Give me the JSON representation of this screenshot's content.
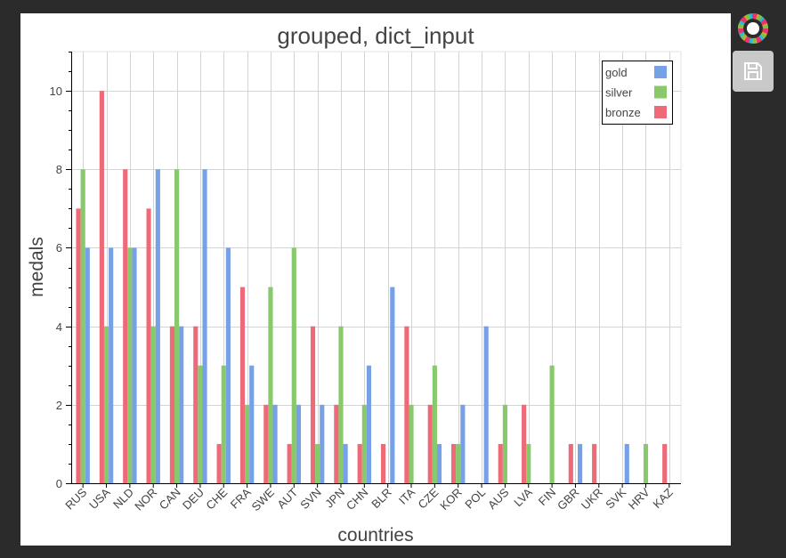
{
  "toolbar": {
    "logo_icon": "bokeh-logo-icon",
    "save_icon": "save-icon"
  },
  "chart_data": {
    "type": "bar",
    "title": "grouped, dict_input",
    "xlabel": "countries",
    "ylabel": "medals",
    "ylim": [
      0,
      11
    ],
    "yticks": [
      0,
      2,
      4,
      6,
      8,
      10
    ],
    "grid": true,
    "legend_position": "top-right",
    "categories": [
      "RUS",
      "USA",
      "NLD",
      "NOR",
      "CAN",
      "DEU",
      "CHE",
      "FRA",
      "SWE",
      "AUT",
      "SVN",
      "JPN",
      "CHN",
      "BLR",
      "ITA",
      "CZE",
      "KOR",
      "POL",
      "AUS",
      "LVA",
      "FIN",
      "GBR",
      "UKR",
      "SVK",
      "HRV",
      "KAZ"
    ],
    "series": [
      {
        "name": "bronze",
        "color": "#ef6a78",
        "values": [
          7,
          10,
          8,
          7,
          4,
          4,
          1,
          5,
          2,
          1,
          4,
          2,
          1,
          1,
          4,
          2,
          1,
          0,
          1,
          2,
          0,
          1,
          1,
          0,
          0,
          1
        ]
      },
      {
        "name": "silver",
        "color": "#87c96b",
        "values": [
          8,
          4,
          6,
          4,
          8,
          3,
          3,
          2,
          5,
          6,
          1,
          4,
          2,
          0,
          2,
          3,
          1,
          0,
          2,
          1,
          3,
          0,
          0,
          0,
          1,
          0
        ]
      },
      {
        "name": "gold",
        "color": "#77a1e6",
        "values": [
          6,
          6,
          6,
          8,
          4,
          8,
          6,
          3,
          2,
          2,
          2,
          1,
          3,
          5,
          0,
          1,
          2,
          4,
          0,
          0,
          0,
          1,
          0,
          1,
          0,
          0
        ]
      }
    ],
    "legend_order": [
      "gold",
      "silver",
      "bronze"
    ]
  }
}
